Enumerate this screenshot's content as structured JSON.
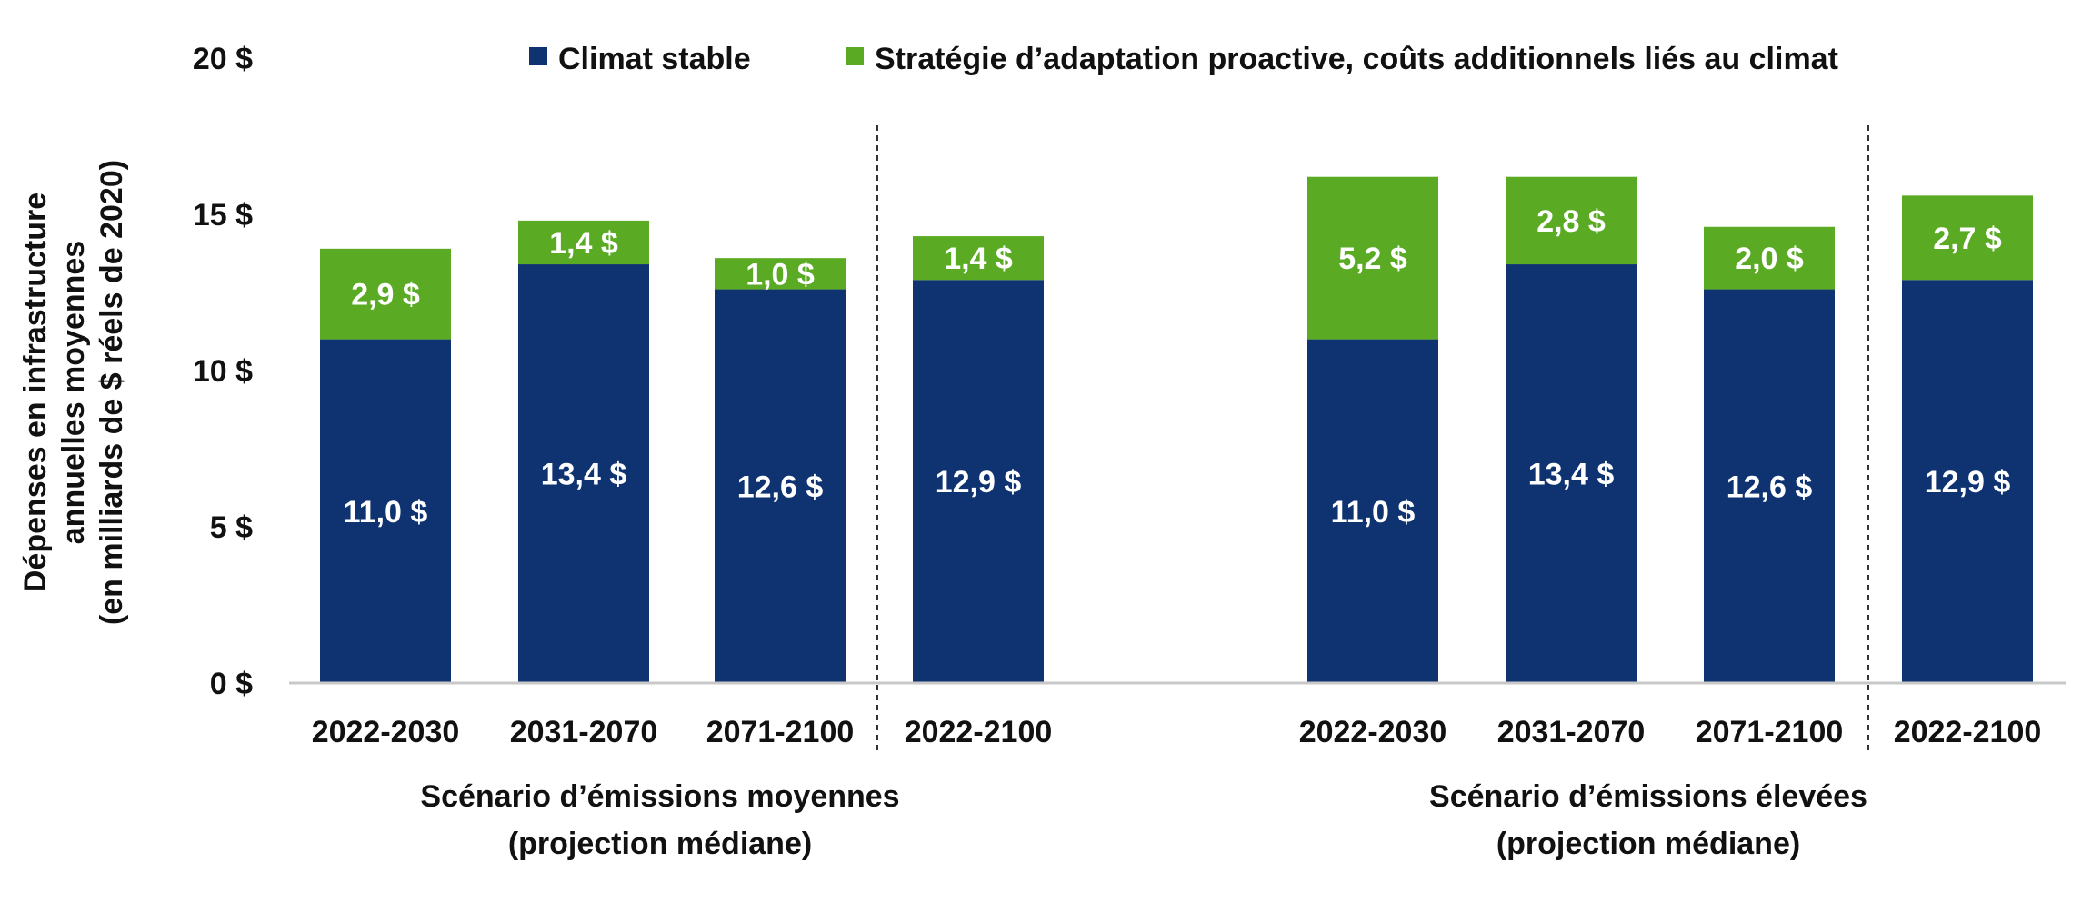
{
  "chart_data": {
    "type": "bar",
    "stacked": true,
    "ylabel_lines": [
      "Dépenses en infrastructure",
      "annuelles moyennes",
      "(en milliards de $ réels de 2020)"
    ],
    "ylim": [
      0,
      20
    ],
    "yticks": [
      0,
      5,
      10,
      15,
      20
    ],
    "ytick_labels": [
      "0 $",
      "5 $",
      "10 $",
      "15 $",
      "20 $"
    ],
    "legend_position": "top",
    "legend": [
      {
        "name": "Climat stable",
        "color": "#0e3370"
      },
      {
        "name": "Stratégie d’adaptation proactive, coûts additionnels liés au climat",
        "color": "#5aab23"
      }
    ],
    "groups": [
      {
        "label_lines": [
          "Scénario d’émissions moyennes",
          "(projection médiane)"
        ],
        "categories": [
          "2022-2030",
          "2031-2070",
          "2071-2100",
          "2022-2100"
        ],
        "series": [
          {
            "name": "Climat stable",
            "values": [
              11.0,
              13.4,
              12.6,
              12.9
            ],
            "labels": [
              "11,0 $",
              "13,4 $",
              "12,6 $",
              "12,9 $"
            ]
          },
          {
            "name": "Stratégie d’adaptation proactive, coûts additionnels liés au climat",
            "values": [
              2.9,
              1.4,
              1.0,
              1.4
            ],
            "labels": [
              "2,9 $",
              "1,4 $",
              "1,0 $",
              "1,4 $"
            ]
          }
        ]
      },
      {
        "label_lines": [
          "Scénario d’émissions élevées",
          "(projection médiane)"
        ],
        "categories": [
          "2022-2030",
          "2031-2070",
          "2071-2100",
          "2022-2100"
        ],
        "series": [
          {
            "name": "Climat stable",
            "values": [
              11.0,
              13.4,
              12.6,
              12.9
            ],
            "labels": [
              "11,0 $",
              "13,4 $",
              "12,6 $",
              "12,9 $"
            ]
          },
          {
            "name": "Stratégie d’adaptation proactive, coûts additionnels liés au climat",
            "values": [
              5.2,
              2.8,
              2.0,
              2.7
            ],
            "labels": [
              "5,2 $",
              "2,8 $",
              "2,0 $",
              "2,7 $"
            ]
          }
        ]
      }
    ]
  }
}
